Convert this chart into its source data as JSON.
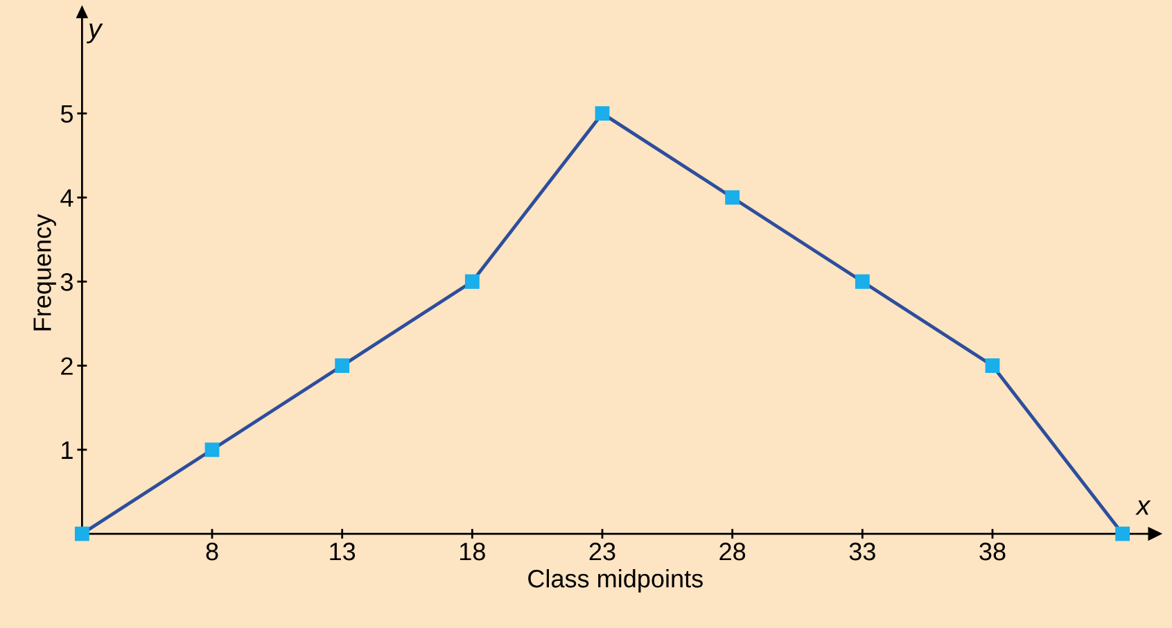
{
  "chart_data": {
    "type": "line",
    "xlabel": "Class midpoints",
    "ylabel": "Frequency",
    "x": [
      3,
      8,
      13,
      18,
      23,
      28,
      33,
      38,
      43
    ],
    "series": [
      {
        "color": "#2d4e9c",
        "values": [
          0,
          1,
          2,
          3,
          5,
          4,
          3,
          2,
          0
        ]
      }
    ],
    "marker": "square",
    "line_style": "solid",
    "xlim": [
      3,
      44
    ],
    "ylim": [
      0,
      6.2
    ],
    "xticks": [
      8,
      13,
      18,
      23,
      28,
      33,
      38
    ],
    "yticks": [
      1,
      2,
      3,
      4,
      5
    ],
    "grid": false,
    "legend": false,
    "annotations": [
      "x",
      "y"
    ]
  }
}
